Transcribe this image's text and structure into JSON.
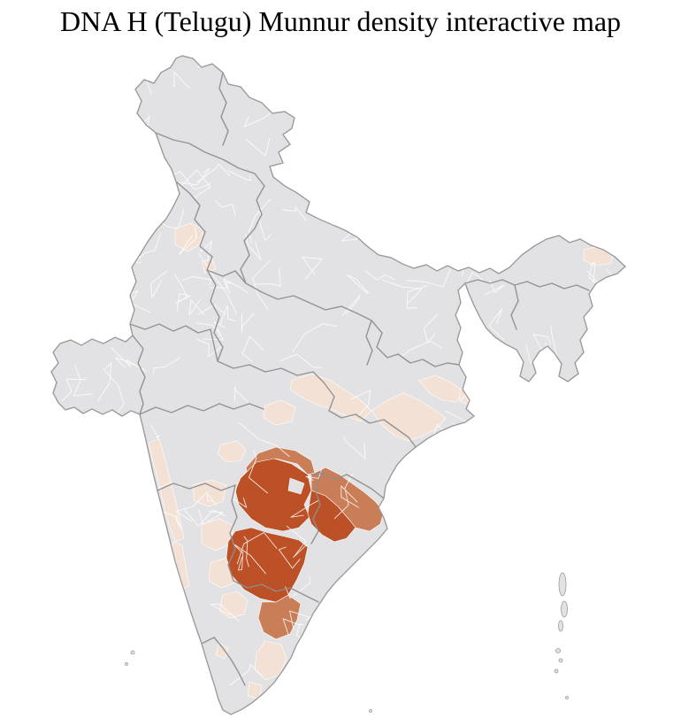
{
  "page": {
    "title": "DNA H (Telugu) Munnur density interactive map"
  },
  "map": {
    "type": "choropleth",
    "subject": "india-districts-density",
    "colors": {
      "background": "#ffffff",
      "land_fill": "#e2e2e4",
      "district_border": "#ffffff",
      "state_border": "#8e8e8e",
      "coast_outline": "#9a9a9a",
      "city_marker": "#8a8a8a",
      "density_high": "#bc5026",
      "density_medium": "#c97e57",
      "density_low": "#f3e1d5"
    },
    "regions": [
      {
        "name": "telangana",
        "level": "high"
      },
      {
        "name": "krishna-godavari-delta",
        "level": "high"
      },
      {
        "name": "rayalaseema-nellore",
        "level": "high"
      },
      {
        "name": "north-telangana-rim",
        "level": "medium"
      },
      {
        "name": "north-coastal-andhra",
        "level": "medium"
      },
      {
        "name": "north-tamil-nadu",
        "level": "medium"
      },
      {
        "name": "central-india-band-west",
        "level": "low"
      },
      {
        "name": "central-india-band-east",
        "level": "low"
      },
      {
        "name": "jharkhand-bengal-spots",
        "level": "low"
      },
      {
        "name": "odisha-coast",
        "level": "low"
      },
      {
        "name": "konkan-coast-north",
        "level": "low"
      },
      {
        "name": "konkan-coast-south",
        "level": "low"
      },
      {
        "name": "east-karnataka-1",
        "level": "low"
      },
      {
        "name": "east-karnataka-2",
        "level": "low"
      },
      {
        "name": "east-karnataka-3",
        "level": "low"
      },
      {
        "name": "south-karnataka",
        "level": "low"
      },
      {
        "name": "central-tamil-nadu",
        "level": "low"
      },
      {
        "name": "south-tamil-nadu",
        "level": "low"
      },
      {
        "name": "kerala-spot",
        "level": "low"
      },
      {
        "name": "punjab-patch",
        "level": "low"
      },
      {
        "name": "delhi-patch",
        "level": "low"
      },
      {
        "name": "upper-assam-patch",
        "level": "low"
      },
      {
        "name": "bengal-coast-patch",
        "level": "low"
      },
      {
        "name": "madhya-pradesh-patch",
        "level": "low"
      },
      {
        "name": "maharashtra-patch",
        "level": "low"
      }
    ]
  }
}
